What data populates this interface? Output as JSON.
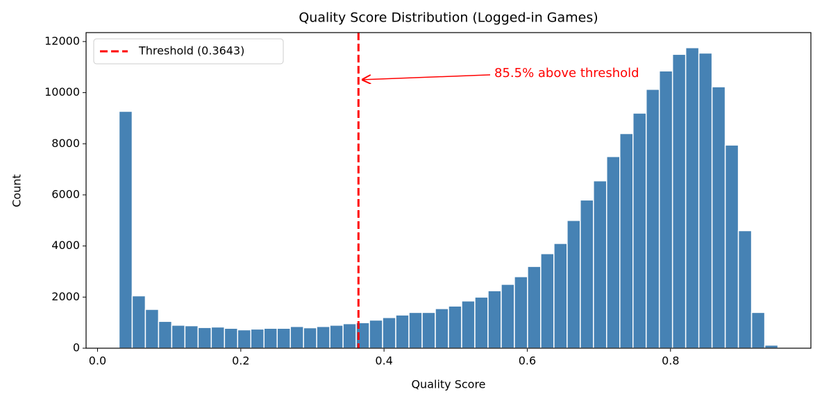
{
  "chart_data": {
    "type": "histogram",
    "title": "Quality Score Distribution (Logged-in Games)",
    "x_label": "Quality Score",
    "y_label": "Count",
    "color": "#4682b4",
    "bins": [
      0.03,
      0.0484,
      0.0668,
      0.0852,
      0.1036,
      0.122,
      0.1404,
      0.1588,
      0.1772,
      0.1956,
      0.214,
      0.2324,
      0.2508,
      0.2692,
      0.2876,
      0.306,
      0.3244,
      0.3428,
      0.3612,
      0.3796,
      0.398,
      0.4164,
      0.4348,
      0.4532,
      0.4716,
      0.49,
      0.5084,
      0.5268,
      0.5452,
      0.5636,
      0.582,
      0.6004,
      0.6188,
      0.6372,
      0.6556,
      0.674,
      0.6924,
      0.7108,
      0.7292,
      0.7476,
      0.766,
      0.7844,
      0.8028,
      0.8212,
      0.8396,
      0.858,
      0.8764,
      0.8948,
      0.9132,
      0.9316,
      0.95
    ],
    "values": [
      9270,
      2050,
      1520,
      1050,
      900,
      880,
      810,
      830,
      780,
      720,
      750,
      780,
      780,
      850,
      800,
      850,
      900,
      960,
      1000,
      1100,
      1200,
      1300,
      1400,
      1400,
      1550,
      1650,
      1850,
      2000,
      2250,
      2500,
      2800,
      3200,
      3700,
      4100,
      5000,
      5800,
      6550,
      7500,
      8400,
      9200,
      10130,
      10850,
      11500,
      11760,
      11550,
      10230,
      7950,
      4600,
      1400,
      120
    ],
    "xlim": [
      -0.016,
      0.996
    ],
    "ylim": [
      0,
      12350
    ],
    "xticks": [
      {
        "value": 0,
        "label": "0.0"
      },
      0.2,
      0.4,
      0.6,
      0.8
    ],
    "yticks": [
      0,
      2000,
      4000,
      6000,
      8000,
      10000,
      12000
    ],
    "threshold": {
      "value": 0.3643,
      "label": "Threshold (0.3643)",
      "color": "#ff0000"
    },
    "annotation": "85.5% above threshold",
    "legend": "upper left"
  }
}
